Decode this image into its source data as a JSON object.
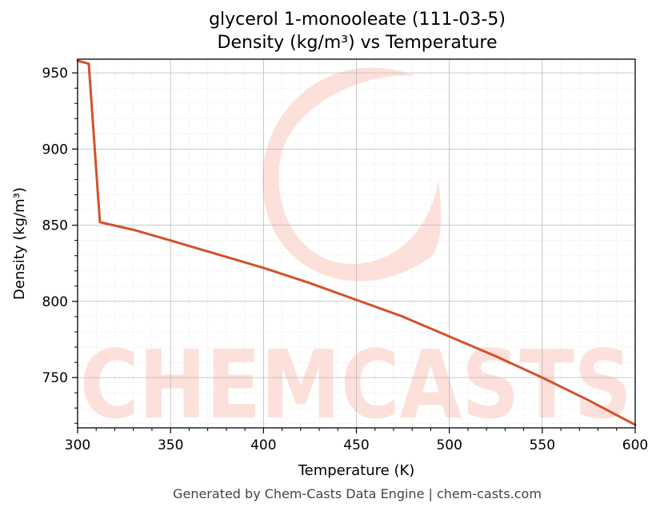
{
  "chart_data": {
    "type": "line",
    "title": "glycerol 1-monooleate (111-03-5)",
    "subtitle": "Density (kg/m³) vs Temperature",
    "xlabel": "Temperature (K)",
    "ylabel": "Density (kg/m³)",
    "xlim": [
      300,
      600
    ],
    "ylim": [
      717,
      959
    ],
    "xticks": [
      300,
      350,
      400,
      450,
      500,
      550,
      600
    ],
    "yticks": [
      750,
      800,
      850,
      900,
      950
    ],
    "grid": true,
    "series": [
      {
        "color": "#d2522a",
        "x": [
          300,
          306,
          312,
          330,
          350,
          375,
          400,
          425,
          450,
          475,
          500,
          525,
          550,
          575,
          600
        ],
        "y": [
          958,
          956,
          852,
          847,
          840,
          831,
          822,
          812,
          801,
          790,
          777,
          764,
          750,
          735,
          719
        ]
      }
    ]
  },
  "watermark": {
    "text": "CHEMCASTS",
    "color": "#fde0da"
  },
  "footer": "Generated by Chem-Casts Data Engine | chem-casts.com"
}
